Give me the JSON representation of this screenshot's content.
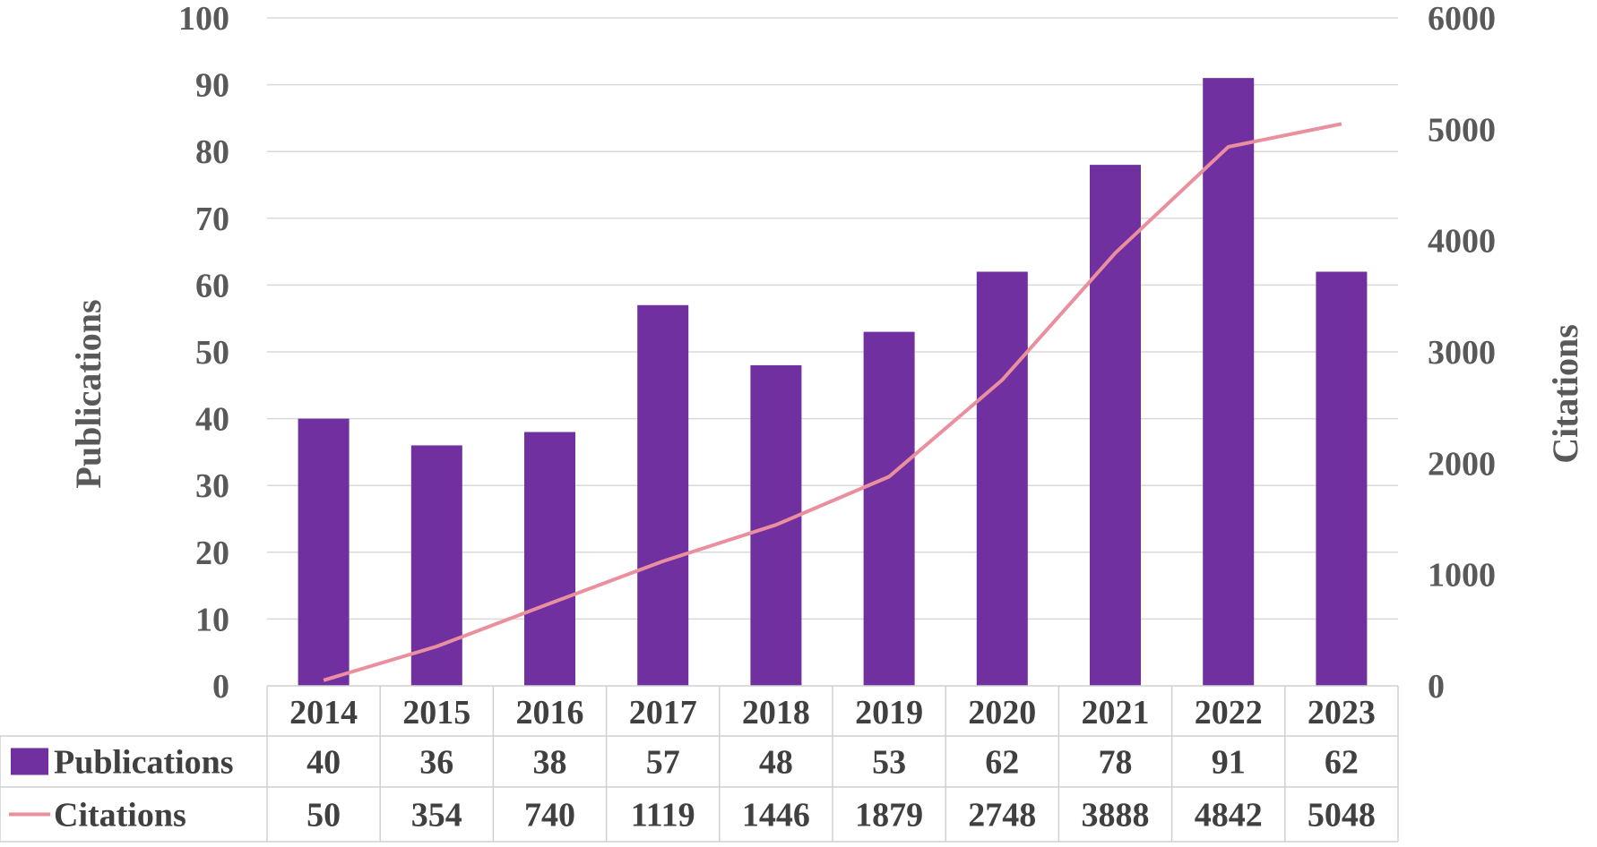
{
  "chart_data": {
    "type": "bar+line",
    "categories": [
      "2014",
      "2015",
      "2016",
      "2017",
      "2018",
      "2019",
      "2020",
      "2021",
      "2022",
      "2023"
    ],
    "series": [
      {
        "name": "Publications",
        "type": "bar",
        "axis": "left",
        "color": "#7030a0",
        "values": [
          40,
          36,
          38,
          57,
          48,
          53,
          62,
          78,
          91,
          62
        ]
      },
      {
        "name": "Citations",
        "type": "line",
        "axis": "right",
        "color": "#e98f9e",
        "values": [
          50,
          354,
          740,
          1119,
          1446,
          1879,
          2748,
          3888,
          4842,
          5048
        ]
      }
    ],
    "ylabel": "Publications",
    "ylabel_right": "Citations",
    "ylim": [
      0,
      100
    ],
    "ylim_right": [
      0,
      6000
    ],
    "yticks": [
      "0",
      "10",
      "20",
      "30",
      "40",
      "50",
      "60",
      "70",
      "80",
      "90",
      "100"
    ],
    "yticks_right": [
      "0",
      "1000",
      "2000",
      "3000",
      "4000",
      "5000",
      "6000"
    ],
    "grid": true,
    "data_table": true
  }
}
